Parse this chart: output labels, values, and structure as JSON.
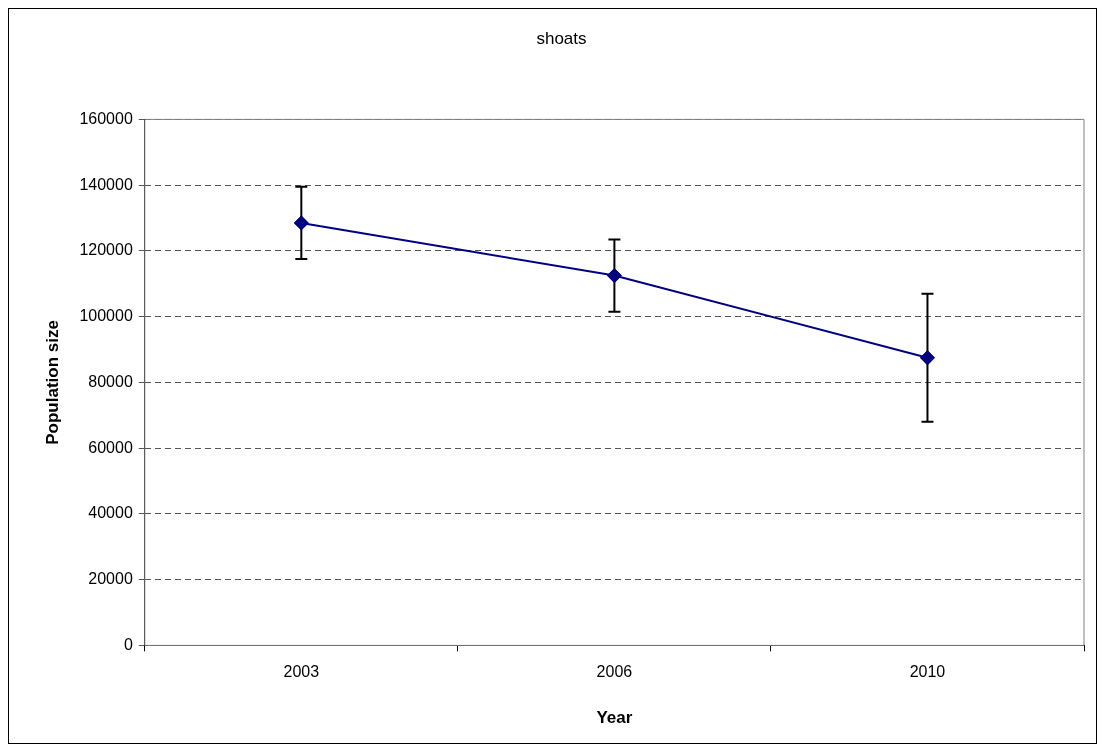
{
  "chart_data": {
    "type": "line",
    "title": "shoats",
    "xlabel": "Year",
    "ylabel": "Population size",
    "categories": [
      "2003",
      "2006",
      "2010"
    ],
    "series": [
      {
        "color": "#000080",
        "values": [
          128500,
          112500,
          87500
        ],
        "errors": [
          11000,
          11000,
          19500
        ]
      }
    ],
    "ylim": [
      0,
      160000
    ],
    "yticks": [
      0,
      20000,
      40000,
      60000,
      80000,
      100000,
      120000,
      140000,
      160000
    ],
    "grid": "y",
    "legend": false,
    "marker": "diamond",
    "line_style": "solid"
  }
}
